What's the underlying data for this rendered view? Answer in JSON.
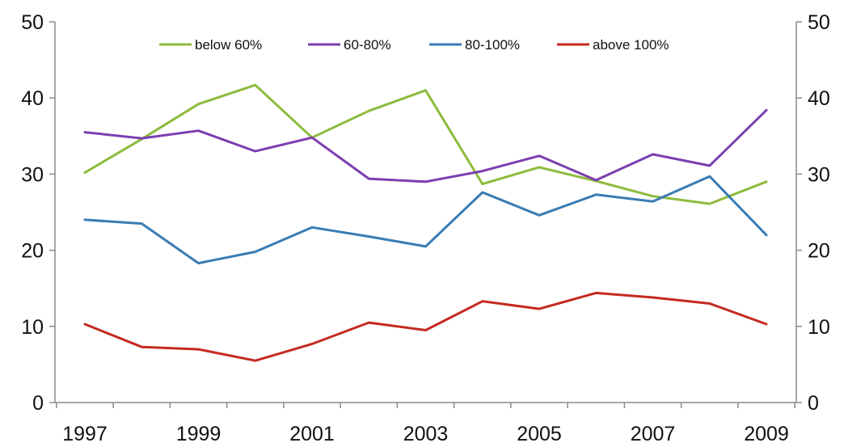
{
  "chart_data": {
    "type": "line",
    "title": "",
    "xlabel": "",
    "ylabel": "",
    "ylim": [
      0,
      50
    ],
    "yticks": [
      0,
      10,
      20,
      30,
      40,
      50
    ],
    "xlim": [
      1997,
      2009
    ],
    "x": [
      1997,
      1998,
      1999,
      2000,
      2001,
      2002,
      2003,
      2004,
      2005,
      2006,
      2007,
      2008,
      2009
    ],
    "x_tick_labels": [
      "1997",
      "1999",
      "2001",
      "2003",
      "2005",
      "2007",
      "2009"
    ],
    "grid": false,
    "secondary_y_axis": true,
    "legend_position": "top",
    "series": [
      {
        "name": "below 60%",
        "color": "#8dbb3c",
        "values": [
          30.2,
          34.6,
          39.2,
          41.7,
          34.8,
          38.3,
          41.0,
          28.7,
          30.9,
          29.1,
          27.1,
          26.1,
          29.0
        ]
      },
      {
        "name": "60-80%",
        "color": "#7b3fb0",
        "values": [
          35.5,
          34.7,
          35.7,
          33.0,
          34.8,
          29.4,
          29.0,
          30.4,
          32.4,
          29.2,
          32.6,
          31.1,
          38.4
        ]
      },
      {
        "name": "80-100%",
        "color": "#3a7cb4",
        "values": [
          24.0,
          23.5,
          18.3,
          19.8,
          23.0,
          21.8,
          20.5,
          27.6,
          24.6,
          27.3,
          26.4,
          29.7,
          22.0
        ]
      },
      {
        "name": "above 100%",
        "color": "#c42a20",
        "values": [
          10.3,
          7.3,
          7.0,
          5.5,
          7.7,
          10.5,
          9.5,
          13.3,
          12.3,
          14.4,
          13.8,
          13.0,
          10.3
        ]
      }
    ]
  }
}
